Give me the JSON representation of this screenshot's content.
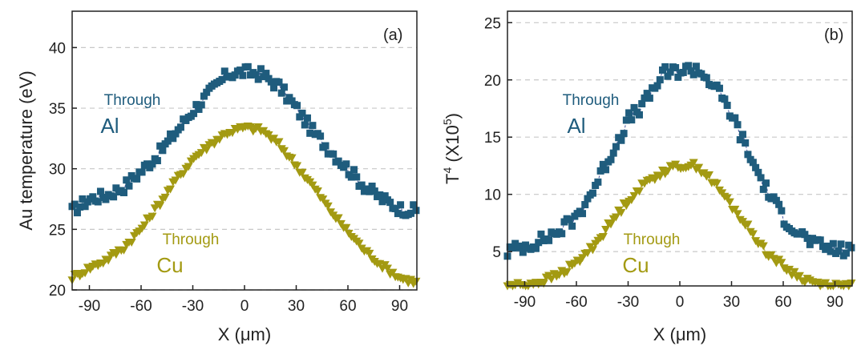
{
  "chart_data": [
    {
      "type": "scatter",
      "panel_label": "(a)",
      "xlabel": "X (μm)",
      "ylabel": "Au temperature (eV)",
      "xlim": [
        -100,
        100
      ],
      "ylim": [
        20,
        43
      ],
      "xticks": [
        -90,
        -60,
        -30,
        0,
        30,
        60,
        90
      ],
      "yticks": [
        20,
        25,
        30,
        35,
        40
      ],
      "grid": "horizontal dashed",
      "annotations": [
        {
          "small": "Through",
          "big": "Al",
          "color": "#1f5c7d"
        },
        {
          "small": "Through",
          "big": "Cu",
          "color": "#a39a12"
        }
      ],
      "series": [
        {
          "marker": "square",
          "color": "#1f5c7d",
          "x": [
            -100,
            -90,
            -80,
            -70,
            -60,
            -50,
            -40,
            -30,
            -20,
            -10,
            0,
            10,
            20,
            30,
            40,
            50,
            60,
            70,
            80,
            90,
            100
          ],
          "values": [
            26.5,
            27.5,
            27.8,
            28.5,
            29.8,
            31.2,
            33.0,
            34.8,
            36.3,
            37.8,
            38.0,
            37.8,
            36.8,
            35.0,
            33.0,
            31.5,
            30.0,
            28.5,
            27.5,
            26.7,
            26.5
          ]
        },
        {
          "marker": "triangle-down",
          "color": "#a39a12",
          "x": [
            -100,
            -90,
            -80,
            -70,
            -60,
            -50,
            -40,
            -30,
            -20,
            -10,
            0,
            10,
            20,
            30,
            40,
            50,
            60,
            70,
            80,
            90,
            100
          ],
          "values": [
            21.0,
            21.8,
            22.5,
            23.5,
            25.0,
            27.0,
            29.0,
            30.8,
            32.0,
            33.0,
            33.4,
            33.2,
            32.0,
            30.3,
            28.5,
            26.5,
            24.8,
            23.2,
            22.0,
            21.0,
            20.6
          ]
        }
      ]
    },
    {
      "type": "scatter",
      "panel_label": "(b)",
      "xlabel": "X (μm)",
      "ylabel": "T",
      "ylabel_sup": "4",
      "ylabel_rest": " (X10",
      "ylabel_sup2": "5",
      "ylabel_end": ")",
      "xlim": [
        -100,
        100
      ],
      "ylim": [
        2,
        26
      ],
      "xticks": [
        -90,
        -60,
        -30,
        0,
        30,
        60,
        90
      ],
      "yticks": [
        5,
        10,
        15,
        20,
        25
      ],
      "grid": "horizontal dashed",
      "annotations": [
        {
          "small": "Through",
          "big": "Al",
          "color": "#1f5c7d"
        },
        {
          "small": "Through",
          "big": "Cu",
          "color": "#a39a12"
        }
      ],
      "series": [
        {
          "marker": "square",
          "color": "#1f5c7d",
          "x": [
            -100,
            -90,
            -80,
            -70,
            -60,
            -50,
            -40,
            -30,
            -20,
            -10,
            0,
            10,
            20,
            30,
            40,
            50,
            60,
            70,
            80,
            90,
            100
          ],
          "values": [
            5.0,
            5.5,
            6.0,
            6.8,
            8.0,
            10.5,
            13.5,
            16.5,
            18.0,
            20.5,
            20.8,
            21.0,
            19.5,
            17.0,
            13.5,
            10.5,
            8.0,
            6.5,
            5.5,
            5.2,
            5.0
          ]
        },
        {
          "marker": "triangle-down",
          "color": "#a39a12",
          "x": [
            -100,
            -90,
            -80,
            -70,
            -60,
            -50,
            -40,
            -30,
            -20,
            -10,
            0,
            10,
            20,
            30,
            40,
            50,
            60,
            70,
            80,
            90,
            100
          ],
          "values": [
            2.0,
            2.1,
            2.4,
            3.0,
            4.0,
            5.5,
            7.5,
            9.5,
            11.0,
            12.0,
            12.5,
            12.5,
            11.0,
            9.0,
            7.0,
            5.0,
            3.7,
            2.7,
            2.2,
            2.0,
            2.0
          ]
        }
      ]
    }
  ]
}
